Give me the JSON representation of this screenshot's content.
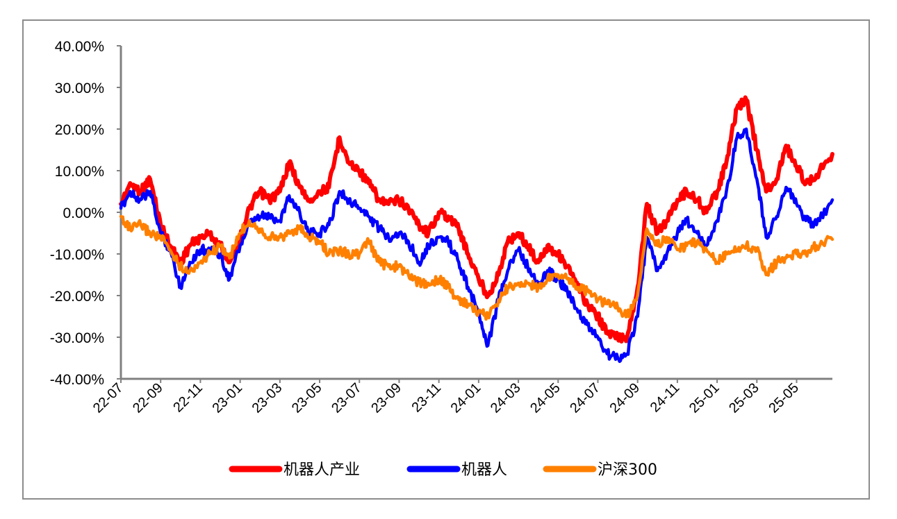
{
  "chart_data": {
    "type": "line",
    "title": "",
    "xlabel": "",
    "ylabel": "",
    "ylim": [
      -0.4,
      0.4
    ],
    "y_ticks": [
      "40.00%",
      "30.00%",
      "20.00%",
      "10.00%",
      "0.00%",
      "-10.00%",
      "-20.00%",
      "-30.00%",
      "-40.00%"
    ],
    "y_tick_values": [
      0.4,
      0.3,
      0.2,
      0.1,
      0.0,
      -0.1,
      -0.2,
      -0.3,
      -0.4
    ],
    "x_ticks": [
      "22-07",
      "22-09",
      "22-11",
      "23-01",
      "23-03",
      "23-05",
      "23-07",
      "23-09",
      "23-11",
      "24-01",
      "24-03",
      "24-05",
      "24-07",
      "24-09",
      "24-11",
      "25-01",
      "25-03",
      "25-05"
    ],
    "x_range_months": [
      "2022-07",
      "2025-06"
    ],
    "grid": false,
    "legend_position": "bottom",
    "series": [
      {
        "name": "机器人产业",
        "color": "#ff0000",
        "values": [
          [
            "2022-07",
            0.02
          ],
          [
            "2022-07-15",
            0.07
          ],
          [
            "2022-08",
            0.05
          ],
          [
            "2022-08-15",
            0.08
          ],
          [
            "2022-09",
            -0.03
          ],
          [
            "2022-09-15",
            -0.08
          ],
          [
            "2022-10",
            -0.12
          ],
          [
            "2022-10-15",
            -0.08
          ],
          [
            "2022-11",
            -0.06
          ],
          [
            "2022-11-15",
            -0.05
          ],
          [
            "2022-12",
            -0.08
          ],
          [
            "2022-12-15",
            -0.12
          ],
          [
            "2023-01",
            -0.06
          ],
          [
            "2023-01-15",
            0.01
          ],
          [
            "2023-02",
            0.05
          ],
          [
            "2023-02-15",
            0.03
          ],
          [
            "2023-03",
            0.05
          ],
          [
            "2023-03-15",
            0.12
          ],
          [
            "2023-04",
            0.06
          ],
          [
            "2023-04-15",
            0.03
          ],
          [
            "2023-05",
            0.05
          ],
          [
            "2023-05-15",
            0.06
          ],
          [
            "2023-06",
            0.18
          ],
          [
            "2023-06-15",
            0.12
          ],
          [
            "2023-07",
            0.1
          ],
          [
            "2023-07-15",
            0.07
          ],
          [
            "2023-08",
            0.03
          ],
          [
            "2023-08-15",
            0.02
          ],
          [
            "2023-09",
            0.03
          ],
          [
            "2023-09-15",
            0.01
          ],
          [
            "2023-10",
            -0.03
          ],
          [
            "2023-10-15",
            -0.05
          ],
          [
            "2023-11",
            0.0
          ],
          [
            "2023-11-15",
            -0.01
          ],
          [
            "2023-12",
            -0.04
          ],
          [
            "2023-12-15",
            -0.1
          ],
          [
            "2024-01",
            -0.16
          ],
          [
            "2024-01-15",
            -0.2
          ],
          [
            "2024-02",
            -0.15
          ],
          [
            "2024-02-15",
            -0.07
          ],
          [
            "2024-03",
            -0.05
          ],
          [
            "2024-03-15",
            -0.08
          ],
          [
            "2024-04",
            -0.12
          ],
          [
            "2024-04-15",
            -0.08
          ],
          [
            "2024-05",
            -0.1
          ],
          [
            "2024-05-15",
            -0.13
          ],
          [
            "2024-06",
            -0.18
          ],
          [
            "2024-06-15",
            -0.22
          ],
          [
            "2024-07",
            -0.25
          ],
          [
            "2024-07-15",
            -0.29
          ],
          [
            "2024-08",
            -0.3
          ],
          [
            "2024-08-15",
            -0.3
          ],
          [
            "2024-09",
            -0.18
          ],
          [
            "2024-09-15",
            0.02
          ],
          [
            "2024-10",
            -0.05
          ],
          [
            "2024-10-15",
            -0.02
          ],
          [
            "2024-11",
            0.03
          ],
          [
            "2024-11-15",
            0.05
          ],
          [
            "2024-12",
            0.03
          ],
          [
            "2024-12-15",
            0.0
          ],
          [
            "2025-01",
            0.05
          ],
          [
            "2025-01-15",
            0.12
          ],
          [
            "2025-02",
            0.25
          ],
          [
            "2025-02-15",
            0.27
          ],
          [
            "2025-03",
            0.15
          ],
          [
            "2025-03-15",
            0.05
          ],
          [
            "2025-04",
            0.08
          ],
          [
            "2025-04-15",
            0.16
          ],
          [
            "2025-05",
            0.11
          ],
          [
            "2025-05-15",
            0.07
          ],
          [
            "2025-06",
            0.09
          ],
          [
            "2025-06-25",
            0.14
          ]
        ]
      },
      {
        "name": "机器人",
        "color": "#0000ff",
        "values": [
          [
            "2022-07",
            0.01
          ],
          [
            "2022-07-15",
            0.05
          ],
          [
            "2022-08",
            0.03
          ],
          [
            "2022-08-15",
            0.05
          ],
          [
            "2022-09",
            -0.05
          ],
          [
            "2022-09-15",
            -0.09
          ],
          [
            "2022-10",
            -0.18
          ],
          [
            "2022-10-15",
            -0.12
          ],
          [
            "2022-11",
            -0.09
          ],
          [
            "2022-11-15",
            -0.09
          ],
          [
            "2022-12",
            -0.1
          ],
          [
            "2022-12-15",
            -0.16
          ],
          [
            "2023-01",
            -0.08
          ],
          [
            "2023-01-15",
            -0.03
          ],
          [
            "2023-02",
            -0.01
          ],
          [
            "2023-02-15",
            -0.01
          ],
          [
            "2023-03",
            -0.02
          ],
          [
            "2023-03-15",
            0.04
          ],
          [
            "2023-04",
            0.0
          ],
          [
            "2023-04-15",
            -0.05
          ],
          [
            "2023-05",
            -0.05
          ],
          [
            "2023-05-15",
            -0.03
          ],
          [
            "2023-06",
            0.05
          ],
          [
            "2023-06-15",
            0.03
          ],
          [
            "2023-07",
            0.01
          ],
          [
            "2023-07-15",
            -0.01
          ],
          [
            "2023-08",
            -0.04
          ],
          [
            "2023-08-15",
            -0.06
          ],
          [
            "2023-09",
            -0.05
          ],
          [
            "2023-09-15",
            -0.07
          ],
          [
            "2023-10",
            -0.12
          ],
          [
            "2023-10-15",
            -0.08
          ],
          [
            "2023-11",
            -0.06
          ],
          [
            "2023-11-15",
            -0.07
          ],
          [
            "2023-12",
            -0.12
          ],
          [
            "2023-12-15",
            -0.18
          ],
          [
            "2024-01",
            -0.24
          ],
          [
            "2024-01-15",
            -0.32
          ],
          [
            "2024-02",
            -0.21
          ],
          [
            "2024-02-15",
            -0.14
          ],
          [
            "2024-03",
            -0.09
          ],
          [
            "2024-03-15",
            -0.13
          ],
          [
            "2024-04",
            -0.18
          ],
          [
            "2024-04-15",
            -0.14
          ],
          [
            "2024-05",
            -0.16
          ],
          [
            "2024-05-15",
            -0.19
          ],
          [
            "2024-06",
            -0.24
          ],
          [
            "2024-06-15",
            -0.27
          ],
          [
            "2024-07",
            -0.3
          ],
          [
            "2024-07-15",
            -0.34
          ],
          [
            "2024-08",
            -0.35
          ],
          [
            "2024-08-15",
            -0.34
          ],
          [
            "2024-09",
            -0.25
          ],
          [
            "2024-09-15",
            -0.06
          ],
          [
            "2024-10",
            -0.14
          ],
          [
            "2024-10-15",
            -0.1
          ],
          [
            "2024-11",
            -0.05
          ],
          [
            "2024-11-15",
            -0.02
          ],
          [
            "2024-12",
            -0.05
          ],
          [
            "2024-12-15",
            -0.08
          ],
          [
            "2025-01",
            -0.02
          ],
          [
            "2025-01-15",
            0.05
          ],
          [
            "2025-02",
            0.18
          ],
          [
            "2025-02-15",
            0.2
          ],
          [
            "2025-03",
            0.08
          ],
          [
            "2025-03-15",
            -0.06
          ],
          [
            "2025-04",
            -0.01
          ],
          [
            "2025-04-15",
            0.06
          ],
          [
            "2025-05",
            0.02
          ],
          [
            "2025-05-15",
            -0.02
          ],
          [
            "2025-06",
            -0.03
          ],
          [
            "2025-06-25",
            0.03
          ]
        ]
      },
      {
        "name": "沪深300",
        "color": "#ff8000",
        "values": [
          [
            "2022-07",
            -0.01
          ],
          [
            "2022-07-15",
            -0.04
          ],
          [
            "2022-08",
            -0.03
          ],
          [
            "2022-08-15",
            -0.05
          ],
          [
            "2022-09",
            -0.06
          ],
          [
            "2022-09-15",
            -0.09
          ],
          [
            "2022-10",
            -0.13
          ],
          [
            "2022-10-15",
            -0.14
          ],
          [
            "2022-11",
            -0.12
          ],
          [
            "2022-11-15",
            -0.1
          ],
          [
            "2022-12",
            -0.08
          ],
          [
            "2022-12-15",
            -0.11
          ],
          [
            "2023-01",
            -0.05
          ],
          [
            "2023-01-15",
            -0.02
          ],
          [
            "2023-02",
            -0.04
          ],
          [
            "2023-02-15",
            -0.06
          ],
          [
            "2023-03",
            -0.06
          ],
          [
            "2023-03-15",
            -0.05
          ],
          [
            "2023-04",
            -0.04
          ],
          [
            "2023-04-15",
            -0.06
          ],
          [
            "2023-05",
            -0.07
          ],
          [
            "2023-05-15",
            -0.1
          ],
          [
            "2023-06",
            -0.09
          ],
          [
            "2023-06-15",
            -0.1
          ],
          [
            "2023-07",
            -0.1
          ],
          [
            "2023-07-15",
            -0.07
          ],
          [
            "2023-08",
            -0.12
          ],
          [
            "2023-08-15",
            -0.13
          ],
          [
            "2023-09",
            -0.13
          ],
          [
            "2023-09-15",
            -0.15
          ],
          [
            "2023-10",
            -0.17
          ],
          [
            "2023-10-15",
            -0.17
          ],
          [
            "2023-11",
            -0.16
          ],
          [
            "2023-11-15",
            -0.18
          ],
          [
            "2023-12",
            -0.21
          ],
          [
            "2023-12-15",
            -0.22
          ],
          [
            "2024-01",
            -0.24
          ],
          [
            "2024-01-15",
            -0.25
          ],
          [
            "2024-02",
            -0.21
          ],
          [
            "2024-02-15",
            -0.18
          ],
          [
            "2024-03",
            -0.17
          ],
          [
            "2024-03-15",
            -0.17
          ],
          [
            "2024-04",
            -0.18
          ],
          [
            "2024-04-15",
            -0.16
          ],
          [
            "2024-05",
            -0.15
          ],
          [
            "2024-05-15",
            -0.16
          ],
          [
            "2024-06",
            -0.18
          ],
          [
            "2024-06-15",
            -0.19
          ],
          [
            "2024-07",
            -0.21
          ],
          [
            "2024-07-15",
            -0.22
          ],
          [
            "2024-08",
            -0.23
          ],
          [
            "2024-08-15",
            -0.25
          ],
          [
            "2024-09",
            -0.2
          ],
          [
            "2024-09-15",
            -0.04
          ],
          [
            "2024-10",
            -0.08
          ],
          [
            "2024-10-15",
            -0.06
          ],
          [
            "2024-11",
            -0.09
          ],
          [
            "2024-11-15",
            -0.08
          ],
          [
            "2024-12",
            -0.07
          ],
          [
            "2024-12-15",
            -0.09
          ],
          [
            "2025-01",
            -0.12
          ],
          [
            "2025-01-15",
            -0.1
          ],
          [
            "2025-02",
            -0.09
          ],
          [
            "2025-02-15",
            -0.08
          ],
          [
            "2025-03",
            -0.09
          ],
          [
            "2025-03-15",
            -0.15
          ],
          [
            "2025-04",
            -0.12
          ],
          [
            "2025-04-15",
            -0.11
          ],
          [
            "2025-05",
            -0.1
          ],
          [
            "2025-05-15",
            -0.1
          ],
          [
            "2025-06",
            -0.08
          ],
          [
            "2025-06-25",
            -0.065
          ]
        ]
      }
    ]
  }
}
